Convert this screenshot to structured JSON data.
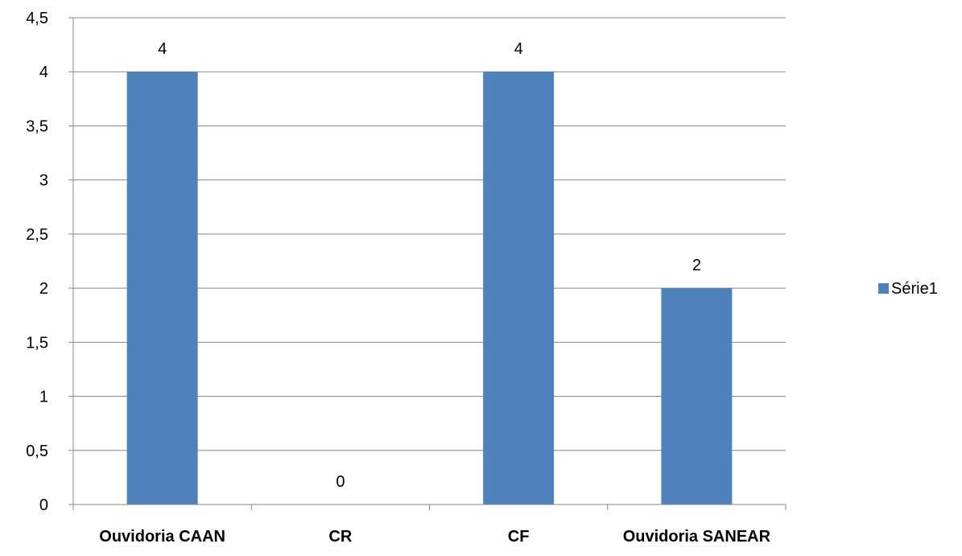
{
  "chart_data": {
    "type": "bar",
    "categories": [
      "Ouvidoria CAAN",
      "CR",
      "CF",
      "Ouvidoria SANEAR"
    ],
    "series": [
      {
        "name": "Série1",
        "values": [
          4,
          0,
          4,
          2
        ],
        "color": "#4F81BD"
      }
    ],
    "ylim": [
      0,
      4.5
    ],
    "yticks": [
      "0",
      "0,5",
      "1",
      "1,5",
      "2",
      "2,5",
      "3",
      "3,5",
      "4",
      "4,5"
    ],
    "data_labels": [
      "4",
      "0",
      "4",
      "2"
    ],
    "grid": true,
    "legend_position": "right"
  }
}
